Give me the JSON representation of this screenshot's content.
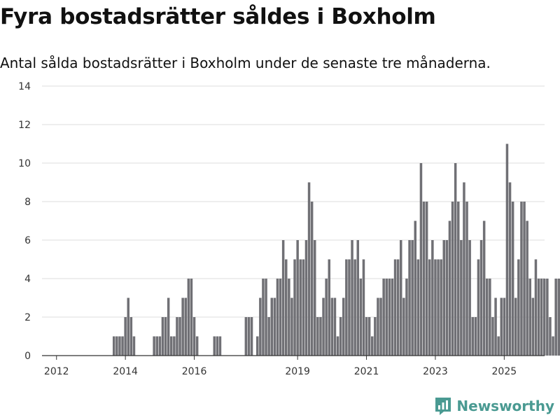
{
  "title": "Fyra bostadsrätter såldes i Boxholm",
  "subtitle": "Antal sålda bostadsrätter i Boxholm under de senaste tre månaderna.",
  "brand": "Newsworthy",
  "colors": {
    "bar": "#707075",
    "highlight": "#1a9e96",
    "grid": "#dddddd",
    "axis": "#333333"
  },
  "chart_data": {
    "type": "bar",
    "ylim": [
      0,
      14
    ],
    "yticks": [
      0,
      2,
      4,
      6,
      8,
      10,
      12,
      14
    ],
    "xticks": [
      "2012",
      "2014",
      "2016",
      "2019",
      "2021",
      "2023",
      "2025"
    ],
    "x_start": "2012-01",
    "annotation": "4",
    "values": [
      0,
      0,
      0,
      0,
      0,
      0,
      0,
      0,
      0,
      0,
      0,
      0,
      0,
      0,
      0,
      0,
      0,
      0,
      0,
      0,
      1,
      1,
      1,
      1,
      2,
      3,
      2,
      1,
      0,
      0,
      0,
      0,
      0,
      0,
      1,
      1,
      1,
      2,
      2,
      3,
      1,
      1,
      2,
      2,
      3,
      3,
      4,
      4,
      2,
      1,
      0,
      0,
      0,
      0,
      0,
      1,
      1,
      1,
      0,
      0,
      0,
      0,
      0,
      0,
      0,
      0,
      2,
      2,
      2,
      0,
      1,
      3,
      4,
      4,
      2,
      3,
      3,
      4,
      4,
      6,
      5,
      4,
      3,
      5,
      6,
      5,
      5,
      6,
      9,
      8,
      6,
      2,
      2,
      3,
      4,
      5,
      3,
      3,
      1,
      2,
      3,
      5,
      5,
      6,
      5,
      6,
      4,
      5,
      2,
      2,
      1,
      2,
      3,
      3,
      4,
      4,
      4,
      4,
      5,
      5,
      6,
      3,
      4,
      6,
      6,
      7,
      5,
      10,
      8,
      8,
      5,
      6,
      5,
      5,
      5,
      6,
      6,
      7,
      8,
      10,
      8,
      6,
      9,
      8,
      6,
      2,
      2,
      5,
      6,
      7,
      4,
      4,
      2,
      3,
      1,
      3,
      3,
      11,
      9,
      8,
      3,
      5,
      8,
      8,
      7,
      4,
      3,
      5,
      4,
      4,
      4,
      4,
      2,
      1,
      4,
      4,
      4,
      3,
      0,
      4
    ]
  }
}
